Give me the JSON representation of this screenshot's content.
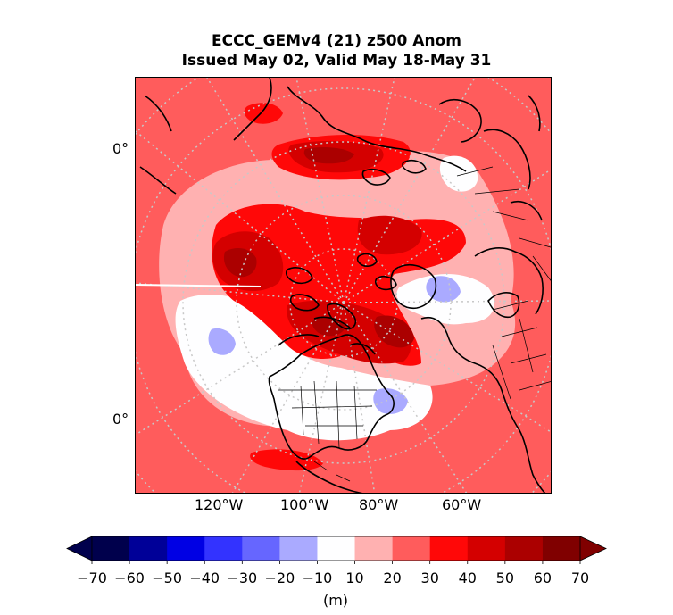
{
  "title_line1": "ECCC_GEMv4 (21) z500 Anom",
  "title_line2": "Issued May 02, Valid May 18-May 31",
  "lat_labels": [
    "0°",
    "0°"
  ],
  "lon_labels": [
    "120°W",
    "100°W",
    "80°W",
    "60°W"
  ],
  "colorbar": {
    "units": "(m)",
    "ticks": [
      "−70",
      "−60",
      "−50",
      "−40",
      "−30",
      "−20",
      "−10",
      "10",
      "20",
      "30",
      "40",
      "50",
      "60",
      "70"
    ],
    "colors": [
      "#00004c",
      "#000098",
      "#0000e4",
      "#3333ff",
      "#6666ff",
      "#aaaaff",
      "#fefeff",
      "#ffb1b1",
      "#ff5c5c",
      "#ff0808",
      "#d40000",
      "#ab0000",
      "#800000"
    ],
    "extend_low": "#00004c",
    "extend_high": "#800000"
  },
  "map": {
    "background_color": "#f25c5c",
    "grid": "dotted"
  }
}
